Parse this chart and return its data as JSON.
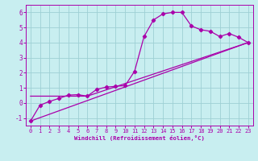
{
  "xlabel": "Windchill (Refroidissement éolien,°C)",
  "bg_color": "#c8eef0",
  "line_color": "#aa00aa",
  "grid_color": "#9ed0d4",
  "xlim": [
    -0.5,
    23.5
  ],
  "ylim": [
    -1.5,
    6.5
  ],
  "xticks": [
    0,
    1,
    2,
    3,
    4,
    5,
    6,
    7,
    8,
    9,
    10,
    11,
    12,
    13,
    14,
    15,
    16,
    17,
    18,
    19,
    20,
    21,
    22,
    23
  ],
  "yticks": [
    -1,
    0,
    1,
    2,
    3,
    4,
    5,
    6
  ],
  "line1_x": [
    0,
    1,
    2,
    3,
    4,
    5,
    6,
    7,
    8,
    9,
    10,
    11,
    12,
    13,
    14,
    15,
    16,
    17,
    18,
    19,
    20,
    21,
    22,
    23
  ],
  "line1_y": [
    -1.2,
    -0.15,
    0.1,
    0.3,
    0.52,
    0.55,
    0.45,
    0.9,
    1.05,
    1.1,
    1.15,
    2.1,
    4.4,
    5.5,
    5.9,
    6.0,
    6.0,
    5.1,
    4.85,
    4.75,
    4.4,
    4.6,
    4.35,
    4.0
  ],
  "line2_x": [
    0,
    23
  ],
  "line2_y": [
    -1.2,
    4.0
  ],
  "line3_x": [
    0,
    6,
    23
  ],
  "line3_y": [
    0.45,
    0.45,
    4.0
  ],
  "marker": "D",
  "markersize": 2.2,
  "linewidth": 0.9,
  "tick_fontsize": 5.0,
  "xlabel_fontsize": 5.2
}
